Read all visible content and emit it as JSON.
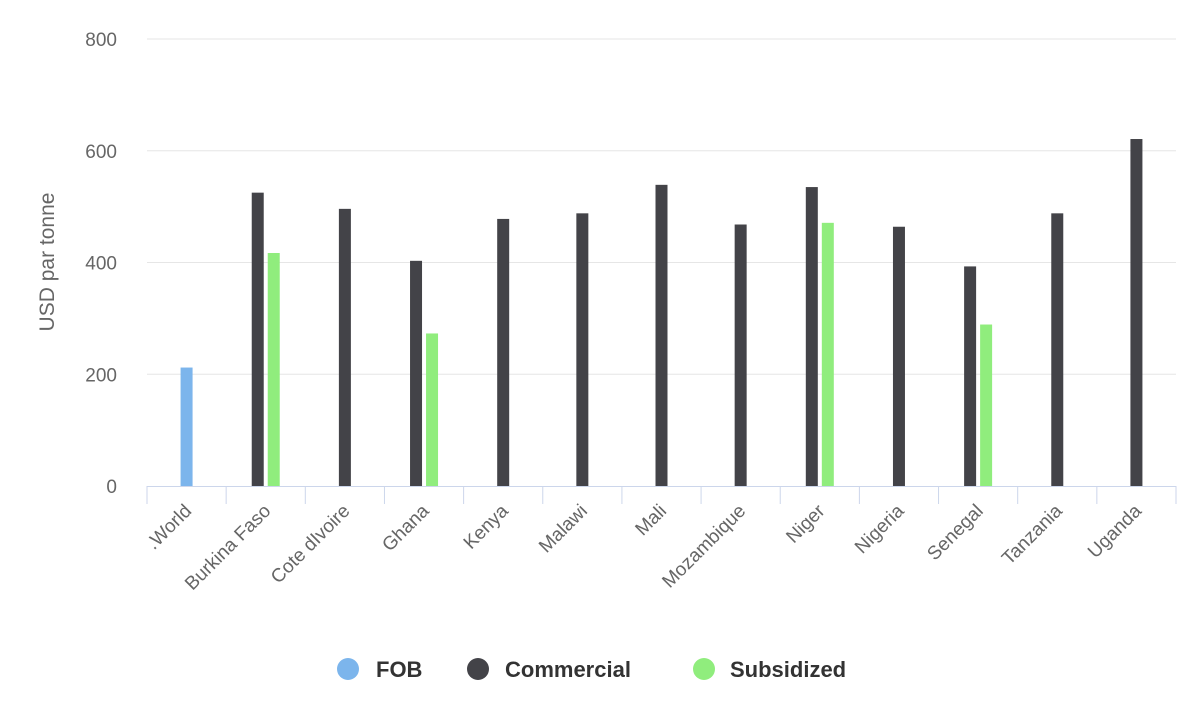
{
  "chart_data": {
    "type": "bar",
    "categories": [
      ".World",
      "Burkina Faso",
      "Cote dIvoire",
      "Ghana",
      "Kenya",
      "Malawi",
      "Mali",
      "Mozambique",
      "Niger",
      "Nigeria",
      "Senegal",
      "Tanzania",
      "Uganda"
    ],
    "series": [
      {
        "name": "FOB",
        "color": "#7cb5ec",
        "values": [
          212,
          null,
          null,
          null,
          null,
          null,
          null,
          null,
          null,
          null,
          null,
          null,
          null
        ]
      },
      {
        "name": "Commercial",
        "color": "#434348",
        "values": [
          null,
          525,
          496,
          403,
          478,
          488,
          539,
          468,
          535,
          464,
          393,
          488,
          621
        ]
      },
      {
        "name": "Subsidized",
        "color": "#90ed7d",
        "values": [
          null,
          417,
          null,
          273,
          null,
          null,
          null,
          null,
          471,
          null,
          289,
          null,
          null
        ]
      }
    ],
    "title": "",
    "xlabel": "",
    "ylabel": "USD par tonne",
    "ylim": [
      0,
      800
    ],
    "yticks": [
      0,
      200,
      400,
      600,
      800
    ],
    "grid": true,
    "legend": "bottom-center"
  }
}
